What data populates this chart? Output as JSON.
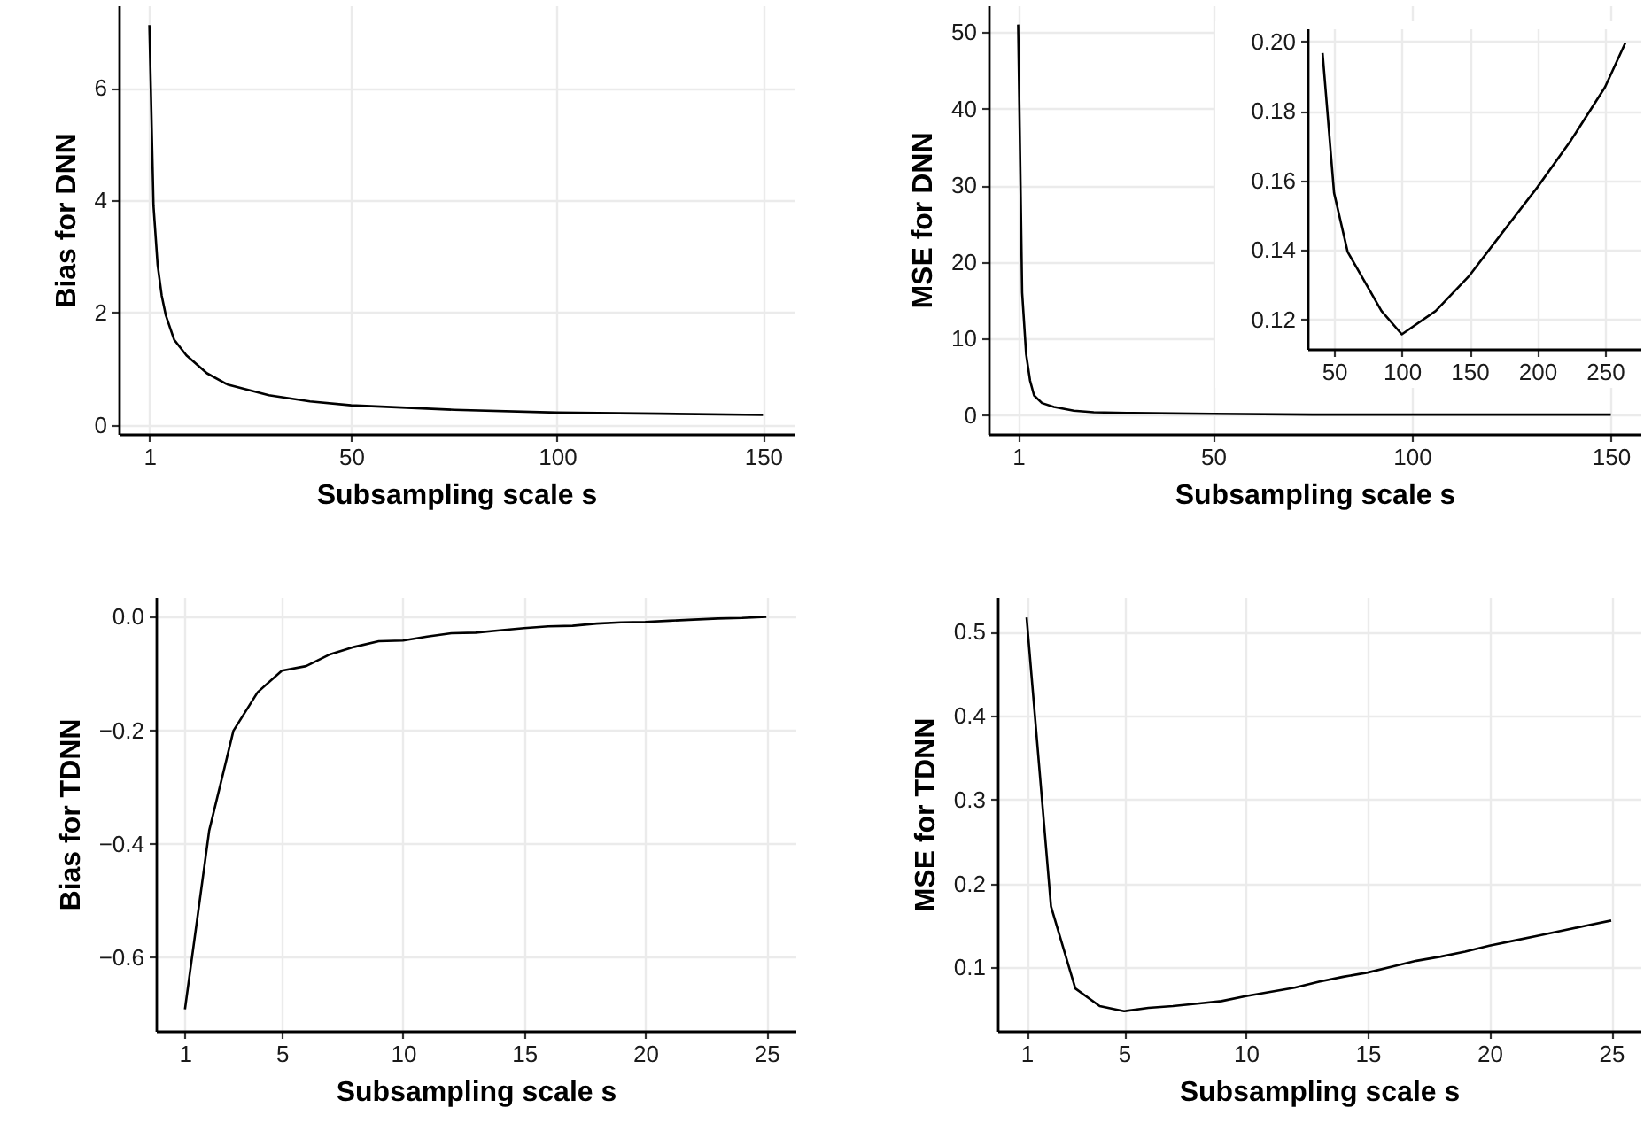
{
  "chart_data": [
    {
      "type": "line",
      "xlabel": "Subsampling scale s",
      "ylabel": "Bias for DNN",
      "x": [
        1,
        2,
        3,
        4,
        5,
        7,
        10,
        15,
        20,
        30,
        40,
        50,
        75,
        100,
        125,
        150
      ],
      "xlim": [
        -6.45,
        157.45
      ],
      "ylim": [
        -0.16,
        7.47
      ],
      "xticks": [
        1,
        50,
        100,
        150
      ],
      "yticks": [
        0,
        2,
        4,
        6
      ],
      "grid": true,
      "series": [
        {
          "color": "#000000",
          "values": [
            7.12,
            3.9,
            2.85,
            2.3,
            1.95,
            1.52,
            1.24,
            0.92,
            0.72,
            0.53,
            0.42,
            0.35,
            0.27,
            0.22,
            0.2,
            0.18
          ]
        }
      ]
    },
    {
      "type": "line",
      "xlabel": "Subsampling scale s",
      "ylabel": "MSE for DNN",
      "x": [
        1,
        2,
        3,
        4,
        5,
        7,
        10,
        15,
        20,
        30,
        50,
        75,
        100,
        125,
        150
      ],
      "xlim": [
        -6.45,
        157.45
      ],
      "ylim": [
        -2.43,
        53.5
      ],
      "xticks": [
        1,
        50,
        100,
        150
      ],
      "yticks": [
        0,
        10,
        20,
        30,
        40,
        50
      ],
      "grid": true,
      "series": [
        {
          "color": "#000000",
          "values": [
            51,
            16,
            8,
            4.5,
            2.6,
            1.6,
            1.1,
            0.6,
            0.4,
            0.3,
            0.2,
            0.1,
            0.1,
            0.1,
            0.1
          ]
        }
      ]
    },
    {
      "type": "line",
      "x": [
        41.5,
        50,
        60,
        75,
        85,
        100,
        125,
        150,
        175,
        200,
        225,
        250,
        265
      ],
      "xlim": [
        30.3,
        276.2
      ],
      "ylim": [
        0.1116,
        0.2037
      ],
      "xticks": [
        50,
        100,
        150,
        200,
        250
      ],
      "yticks": [
        {
          "value": 0.12,
          "label": "0.12"
        },
        {
          "value": 0.14,
          "label": "0.14"
        },
        {
          "value": 0.16,
          "label": "0.16"
        },
        {
          "value": 0.18,
          "label": "0.18"
        },
        {
          "value": 0.2,
          "label": "0.20"
        }
      ],
      "grid": true,
      "series": [
        {
          "color": "#000000",
          "values": [
            0.1966,
            0.1564,
            0.1395,
            0.1293,
            0.1225,
            0.1158,
            0.1225,
            0.1327,
            0.1454,
            0.158,
            0.1716,
            0.1868,
            0.1995
          ]
        }
      ]
    },
    {
      "type": "line",
      "xlabel": "Subsampling scale s",
      "ylabel": "Bias for TDNN",
      "x": [
        1,
        2,
        3,
        4,
        5,
        6,
        7,
        8,
        9,
        10,
        11,
        12,
        13,
        14,
        15,
        16,
        17,
        18,
        19,
        20,
        21,
        22,
        23,
        24,
        25
      ],
      "xlim": [
        -0.2,
        26.2
      ],
      "ylim": [
        -0.73,
        0.035
      ],
      "xticks": [
        1,
        5,
        10,
        15,
        20,
        25
      ],
      "yticks": [
        -0.6,
        -0.4,
        -0.2,
        {
          "value": 0,
          "label": "0.0"
        }
      ],
      "grid": true,
      "series": [
        {
          "color": "#000000",
          "values": [
            -0.692,
            -0.377,
            -0.201,
            -0.133,
            -0.095,
            -0.087,
            -0.066,
            -0.053,
            -0.043,
            -0.042,
            -0.035,
            -0.029,
            -0.028,
            -0.024,
            -0.02,
            -0.017,
            -0.016,
            -0.012,
            -0.01,
            -0.009,
            -0.007,
            -0.005,
            -0.003,
            -0.002,
            0
          ]
        }
      ]
    },
    {
      "type": "line",
      "xlabel": "Subsampling scale s",
      "ylabel": "MSE for TDNN",
      "x": [
        1,
        2,
        3,
        4,
        5,
        6,
        7,
        8,
        9,
        10,
        11,
        12,
        13,
        14,
        15,
        16,
        17,
        18,
        19,
        20,
        21,
        22,
        23,
        24,
        25
      ],
      "xlim": [
        -0.2,
        26.2
      ],
      "ylim": [
        0.0245,
        0.5415
      ],
      "xticks": [
        1,
        5,
        10,
        15,
        20,
        25
      ],
      "yticks": [
        0.1,
        0.2,
        0.3,
        0.4,
        0.5
      ],
      "grid": true,
      "series": [
        {
          "color": "#000000",
          "values": [
            0.517,
            0.173,
            0.075,
            0.054,
            0.048,
            0.052,
            0.054,
            0.057,
            0.06,
            0.066,
            0.071,
            0.076,
            0.083,
            0.089,
            0.094,
            0.101,
            0.108,
            0.113,
            0.119,
            0.126,
            0.132,
            0.138,
            0.144,
            0.15,
            0.156
          ]
        }
      ]
    }
  ]
}
